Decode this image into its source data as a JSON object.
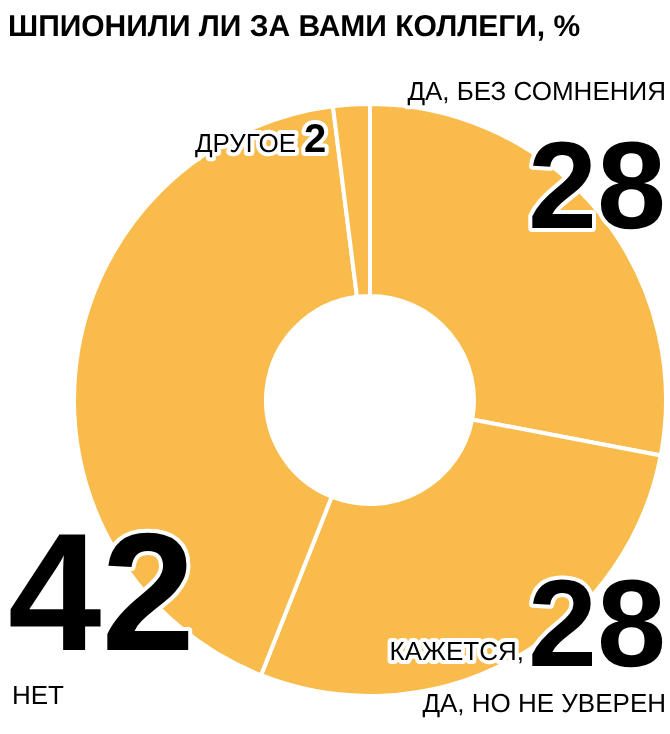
{
  "chart_data": {
    "type": "donut",
    "title": "ШПИОНИЛИ ЛИ ЗА ВАМИ КОЛЛЕГИ, %",
    "categories": [
      "ДА, БЕЗ СОМНЕНИЯ",
      "КАЖЕТСЯ, ДА, НО НЕ УВЕРЕН",
      "НЕТ",
      "ДРУГОЕ"
    ],
    "values": [
      28,
      28,
      42,
      2
    ],
    "colors": [
      "#f9bb4c",
      "#f9bb4c",
      "#f9bb4c",
      "#f9bb4c"
    ],
    "data_labels": true
  }
}
